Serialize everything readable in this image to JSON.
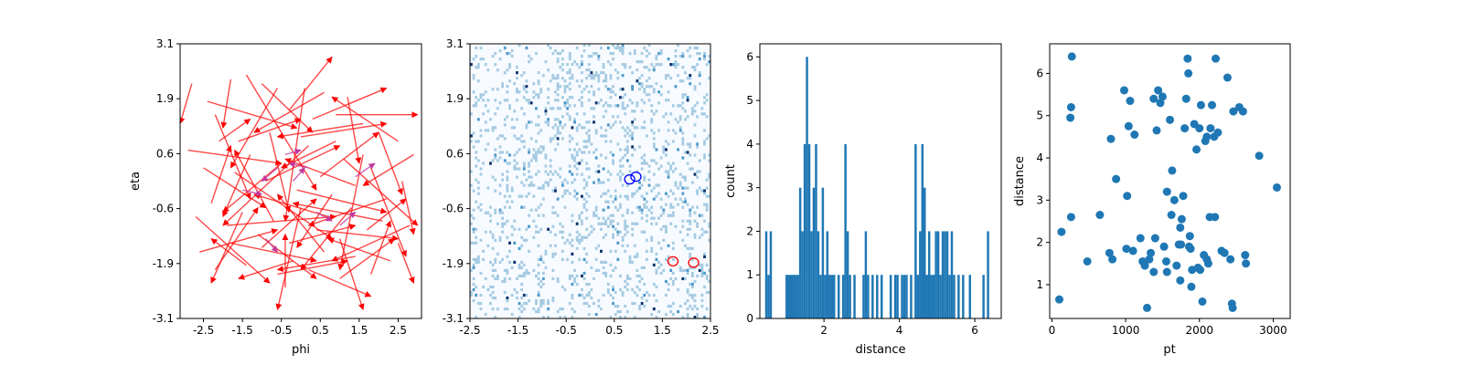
{
  "chart_data": [
    {
      "type": "quiver",
      "xlabel": "phi",
      "ylabel": "eta",
      "xlim": [
        -3.1,
        3.1
      ],
      "ylim": [
        -3.1,
        3.1
      ],
      "x_ticks": [
        "-2.5",
        "-1.5",
        "-0.5",
        "0.5",
        "1.5",
        "2.5"
      ],
      "x_tick_values": [
        -2.5,
        -1.5,
        -0.5,
        0.5,
        1.5,
        2.5
      ],
      "y_ticks": [
        "-3.1",
        "-1.9",
        "-0.6",
        "0.6",
        "1.9",
        "3.1"
      ],
      "y_tick_values": [
        -3.1,
        -1.86,
        -0.62,
        0.62,
        1.86,
        3.1
      ],
      "colors": {
        "red": "#ff0000",
        "purple": "#c03aa0"
      },
      "red_arrows": [
        [
          -2.8,
          2.2,
          -0.3,
          -0.9
        ],
        [
          -2.2,
          1.5,
          0.9,
          -1.9
        ],
        [
          -1.8,
          2.3,
          -0.2,
          -1.1
        ],
        [
          -1.4,
          2.4,
          1.8,
          -2.6
        ],
        [
          -1.0,
          2.2,
          1.3,
          -1.1
        ],
        [
          -0.6,
          2.1,
          -1.2,
          -1.8
        ],
        [
          -0.3,
          1.6,
          1.1,
          1.2
        ],
        [
          0.1,
          2.1,
          -0.5,
          -3.0
        ],
        [
          0.3,
          1.4,
          1.9,
          0.7
        ],
        [
          0.6,
          2.0,
          -1.8,
          -0.9
        ],
        [
          0.9,
          1.5,
          2.1,
          0.0
        ],
        [
          1.2,
          1.9,
          0.3,
          -1.5
        ],
        [
          1.6,
          1.3,
          -2.2,
          -0.3
        ],
        [
          2.0,
          1.1,
          0.6,
          -1.4
        ],
        [
          2.5,
          0.9,
          -1.7,
          1.0
        ],
        [
          2.9,
          0.6,
          -1.3,
          -0.7
        ],
        [
          -2.9,
          0.7,
          2.4,
          -0.3
        ],
        [
          -2.5,
          0.3,
          1.6,
          -0.9
        ],
        [
          -2.1,
          0.9,
          0.8,
          0.5
        ],
        [
          -1.7,
          0.2,
          2.5,
          -1.5
        ],
        [
          -1.3,
          0.6,
          -0.7,
          -1.4
        ],
        [
          -0.9,
          0.0,
          1.9,
          0.8
        ],
        [
          -0.5,
          0.4,
          -1.5,
          -1.1
        ],
        [
          -0.1,
          -0.2,
          2.3,
          -0.5
        ],
        [
          0.2,
          0.8,
          -2.2,
          -1.8
        ],
        [
          0.5,
          0.1,
          1.5,
          1.0
        ],
        [
          0.8,
          -0.3,
          -0.9,
          -1.2
        ],
        [
          1.1,
          0.5,
          1.9,
          -1.5
        ],
        [
          1.4,
          -0.1,
          -1.8,
          0.6
        ],
        [
          1.8,
          0.3,
          0.9,
          -2.0
        ],
        [
          2.2,
          -0.4,
          -2.0,
          -0.6
        ],
        [
          2.6,
          0.0,
          0.3,
          -1.2
        ],
        [
          -2.7,
          -0.8,
          1.9,
          -1.5
        ],
        [
          -2.3,
          -0.5,
          0.5,
          1.3
        ],
        [
          -1.9,
          -1.0,
          2.8,
          0.2
        ],
        [
          -1.5,
          -0.7,
          -0.8,
          -1.6
        ],
        [
          -1.1,
          -1.2,
          1.5,
          -1.0
        ],
        [
          -0.7,
          -0.9,
          -1.0,
          1.6
        ],
        [
          -0.3,
          -1.4,
          1.7,
          0.4
        ],
        [
          0.0,
          -0.6,
          -0.6,
          -2.3
        ],
        [
          0.4,
          -1.1,
          2.1,
          -0.2
        ],
        [
          0.7,
          -0.8,
          -1.9,
          0.5
        ],
        [
          1.0,
          -1.3,
          0.6,
          -1.6
        ],
        [
          1.3,
          -0.6,
          -1.3,
          -1.4
        ],
        [
          1.7,
          -1.1,
          1.0,
          0.7
        ],
        [
          2.1,
          -0.9,
          -2.3,
          0.4
        ],
        [
          2.5,
          -1.4,
          0.4,
          -0.9
        ],
        [
          2.8,
          -1.0,
          -2.0,
          -0.8
        ],
        [
          -2.6,
          -1.6,
          2.0,
          0.5
        ],
        [
          -2.2,
          -2.0,
          1.1,
          1.4
        ],
        [
          -1.8,
          -1.4,
          2.2,
          -0.4
        ],
        [
          -1.4,
          -1.9,
          -0.9,
          0.6
        ],
        [
          -1.0,
          -1.5,
          1.4,
          1.1
        ],
        [
          -0.6,
          -2.1,
          1.8,
          0.3
        ],
        [
          -0.2,
          -1.8,
          -1.4,
          -0.4
        ],
        [
          0.2,
          -2.0,
          1.6,
          -0.6
        ],
        [
          0.6,
          -1.6,
          -1.2,
          1.3
        ],
        [
          1.0,
          -2.2,
          1.4,
          0.9
        ],
        [
          1.4,
          -1.7,
          -2.0,
          -0.3
        ],
        [
          1.8,
          -2.1,
          0.5,
          1.2
        ],
        [
          2.3,
          -1.8,
          -1.6,
          0.5
        ],
        [
          -0.4,
          -2.4,
          0.0,
          1.2
        ],
        [
          -1.6,
          0.9,
          1.6,
          0.5
        ],
        [
          0.9,
          0.9,
          -1.4,
          -0.6
        ],
        [
          -2.4,
          1.8,
          2.3,
          -0.6
        ],
        [
          1.6,
          0.6,
          -0.6,
          -2.6
        ],
        [
          -0.8,
          1.1,
          0.5,
          -1.8
        ],
        [
          0.0,
          1.0,
          2.2,
          0.3
        ]
      ],
      "purple_arrows": [
        [
          1.4,
          0.1,
          0.5,
          0.3
        ],
        [
          -0.6,
          0.3,
          -0.4,
          -0.3
        ],
        [
          -0.2,
          0.0,
          0.3,
          0.3
        ],
        [
          0.4,
          -0.7,
          0.4,
          -0.2
        ],
        [
          -1.5,
          -0.2,
          0.5,
          -0.1
        ],
        [
          0.2,
          0.3,
          -0.5,
          0.1
        ],
        [
          1.0,
          -1.0,
          0.4,
          0.3
        ],
        [
          -0.9,
          -1.3,
          0.3,
          -0.3
        ],
        [
          -0.4,
          0.6,
          0.4,
          0.1
        ]
      ]
    },
    {
      "type": "heatmap",
      "xlim": [
        -2.5,
        2.5
      ],
      "ylim": [
        -3.1,
        3.1
      ],
      "x_ticks": [
        "-2.5",
        "-1.5",
        "-0.5",
        "0.5",
        "1.5",
        "2.5"
      ],
      "x_tick_values": [
        -2.5,
        -1.5,
        -0.5,
        0.5,
        1.5,
        2.5
      ],
      "y_ticks": [
        "-3.1",
        "-1.9",
        "-0.6",
        "0.6",
        "1.9",
        "3.1"
      ],
      "y_tick_values": [
        -3.1,
        -1.86,
        -0.62,
        0.62,
        1.86,
        3.1
      ],
      "colors": {
        "background": "#f7fbff",
        "light": "#a6cbe2",
        "medium": "#4b97c9",
        "dark": "#08306b",
        "blue_circle": "#0000ff",
        "red_circle": "#ff0000"
      },
      "grid": {
        "nx": 100,
        "ny": 100
      },
      "blue_circles": [
        [
          0.82,
          0.04
        ],
        [
          0.95,
          0.1
        ]
      ],
      "red_circles": [
        [
          1.72,
          -1.81
        ],
        [
          2.15,
          -1.84
        ]
      ]
    },
    {
      "type": "bar",
      "xlabel": "distance",
      "ylabel": "count",
      "xlim": [
        0.3,
        6.7
      ],
      "ylim": [
        0,
        6.3
      ],
      "x_ticks": [
        "2",
        "4",
        "6"
      ],
      "x_tick_values": [
        2,
        4,
        6
      ],
      "y_ticks": [
        "0",
        "1",
        "2",
        "3",
        "4",
        "5",
        "6"
      ],
      "y_tick_values": [
        0,
        1,
        2,
        3,
        4,
        5,
        6
      ],
      "color": "#1f77b4",
      "bin_width": 0.06,
      "bins": [
        [
          0.47,
          2
        ],
        [
          0.53,
          1
        ],
        [
          0.59,
          2
        ],
        [
          1.01,
          1
        ],
        [
          1.07,
          1
        ],
        [
          1.13,
          1
        ],
        [
          1.19,
          1
        ],
        [
          1.25,
          1
        ],
        [
          1.31,
          1
        ],
        [
          1.37,
          3
        ],
        [
          1.43,
          2
        ],
        [
          1.49,
          4
        ],
        [
          1.55,
          6
        ],
        [
          1.61,
          4
        ],
        [
          1.67,
          2
        ],
        [
          1.73,
          3
        ],
        [
          1.79,
          4
        ],
        [
          1.85,
          2
        ],
        [
          1.91,
          1
        ],
        [
          1.97,
          3
        ],
        [
          2.03,
          1
        ],
        [
          2.09,
          2
        ],
        [
          2.15,
          1
        ],
        [
          2.21,
          1
        ],
        [
          2.27,
          1
        ],
        [
          2.39,
          1
        ],
        [
          2.51,
          1
        ],
        [
          2.57,
          4
        ],
        [
          2.63,
          2
        ],
        [
          2.69,
          1
        ],
        [
          2.81,
          1
        ],
        [
          3.05,
          1
        ],
        [
          3.11,
          2
        ],
        [
          3.17,
          1
        ],
        [
          3.29,
          1
        ],
        [
          3.41,
          1
        ],
        [
          3.53,
          1
        ],
        [
          3.77,
          1
        ],
        [
          3.89,
          1
        ],
        [
          3.95,
          1
        ],
        [
          4.07,
          1
        ],
        [
          4.13,
          1
        ],
        [
          4.19,
          1
        ],
        [
          4.31,
          1
        ],
        [
          4.43,
          4
        ],
        [
          4.49,
          1
        ],
        [
          4.55,
          2
        ],
        [
          4.61,
          4
        ],
        [
          4.67,
          3
        ],
        [
          4.73,
          1
        ],
        [
          4.79,
          2
        ],
        [
          4.85,
          1
        ],
        [
          4.91,
          1
        ],
        [
          4.97,
          2
        ],
        [
          5.03,
          2
        ],
        [
          5.09,
          1
        ],
        [
          5.15,
          2
        ],
        [
          5.21,
          2
        ],
        [
          5.27,
          2
        ],
        [
          5.33,
          1
        ],
        [
          5.39,
          2
        ],
        [
          5.45,
          1
        ],
        [
          5.57,
          1
        ],
        [
          5.69,
          1
        ],
        [
          5.87,
          1
        ],
        [
          6.23,
          1
        ],
        [
          6.35,
          2
        ]
      ]
    },
    {
      "type": "scatter",
      "xlabel": "pt",
      "ylabel": "distance",
      "xlim": [
        -30,
        3230
      ],
      "ylim": [
        0.2,
        6.7
      ],
      "x_ticks": [
        "0",
        "1000",
        "2000",
        "3000"
      ],
      "x_tick_values": [
        0,
        1000,
        2000,
        3000
      ],
      "y_ticks": [
        "1",
        "2",
        "3",
        "4",
        "5",
        "6"
      ],
      "y_tick_values": [
        1,
        2,
        3,
        4,
        5,
        6
      ],
      "color": "#1f77b4",
      "points": [
        [
          270,
          6.4
        ],
        [
          260,
          5.2
        ],
        [
          250,
          4.95
        ],
        [
          130,
          2.25
        ],
        [
          260,
          2.6
        ],
        [
          100,
          0.65
        ],
        [
          480,
          1.55
        ],
        [
          650,
          2.65
        ],
        [
          780,
          1.75
        ],
        [
          820,
          1.6
        ],
        [
          870,
          3.5
        ],
        [
          800,
          4.45
        ],
        [
          980,
          5.6
        ],
        [
          1060,
          5.35
        ],
        [
          1040,
          4.75
        ],
        [
          1120,
          4.55
        ],
        [
          1020,
          3.1
        ],
        [
          1010,
          1.85
        ],
        [
          1100,
          1.8
        ],
        [
          1200,
          2.1
        ],
        [
          1230,
          1.55
        ],
        [
          1260,
          1.45
        ],
        [
          1290,
          0.45
        ],
        [
          1320,
          1.6
        ],
        [
          1340,
          1.75
        ],
        [
          1380,
          1.3
        ],
        [
          1400,
          2.1
        ],
        [
          1420,
          4.65
        ],
        [
          1440,
          5.6
        ],
        [
          1380,
          5.4
        ],
        [
          1470,
          5.3
        ],
        [
          1500,
          5.45
        ],
        [
          1520,
          1.9
        ],
        [
          1550,
          1.55
        ],
        [
          1560,
          1.3
        ],
        [
          1560,
          3.2
        ],
        [
          1600,
          4.9
        ],
        [
          1620,
          2.65
        ],
        [
          1630,
          3.7
        ],
        [
          1660,
          3.0
        ],
        [
          1690,
          1.45
        ],
        [
          1720,
          1.95
        ],
        [
          1740,
          1.1
        ],
        [
          1740,
          2.35
        ],
        [
          1760,
          2.55
        ],
        [
          1780,
          3.1
        ],
        [
          1800,
          4.7
        ],
        [
          1820,
          5.4
        ],
        [
          1840,
          6.35
        ],
        [
          1850,
          6.0
        ],
        [
          1860,
          1.9
        ],
        [
          1870,
          2.15
        ],
        [
          1880,
          1.85
        ],
        [
          1890,
          0.95
        ],
        [
          1900,
          1.35
        ],
        [
          1930,
          4.8
        ],
        [
          1960,
          4.2
        ],
        [
          1980,
          1.4
        ],
        [
          2000,
          4.7
        ],
        [
          2020,
          5.25
        ],
        [
          2040,
          0.6
        ],
        [
          2060,
          1.7
        ],
        [
          2080,
          4.4
        ],
        [
          2100,
          4.5
        ],
        [
          2100,
          1.6
        ],
        [
          2120,
          1.5
        ],
        [
          2140,
          2.6
        ],
        [
          2150,
          4.7
        ],
        [
          2170,
          5.25
        ],
        [
          2200,
          4.5
        ],
        [
          2210,
          2.6
        ],
        [
          2220,
          6.35
        ],
        [
          2250,
          4.6
        ],
        [
          2300,
          1.8
        ],
        [
          2340,
          1.75
        ],
        [
          2380,
          5.9
        ],
        [
          2420,
          1.6
        ],
        [
          2440,
          0.55
        ],
        [
          2450,
          0.45
        ],
        [
          2460,
          5.1
        ],
        [
          2540,
          5.2
        ],
        [
          2590,
          5.1
        ],
        [
          2620,
          1.7
        ],
        [
          2630,
          1.5
        ],
        [
          2810,
          4.05
        ],
        [
          3050,
          3.3
        ],
        [
          2010,
          1.35
        ],
        [
          1750,
          1.95
        ]
      ]
    }
  ]
}
